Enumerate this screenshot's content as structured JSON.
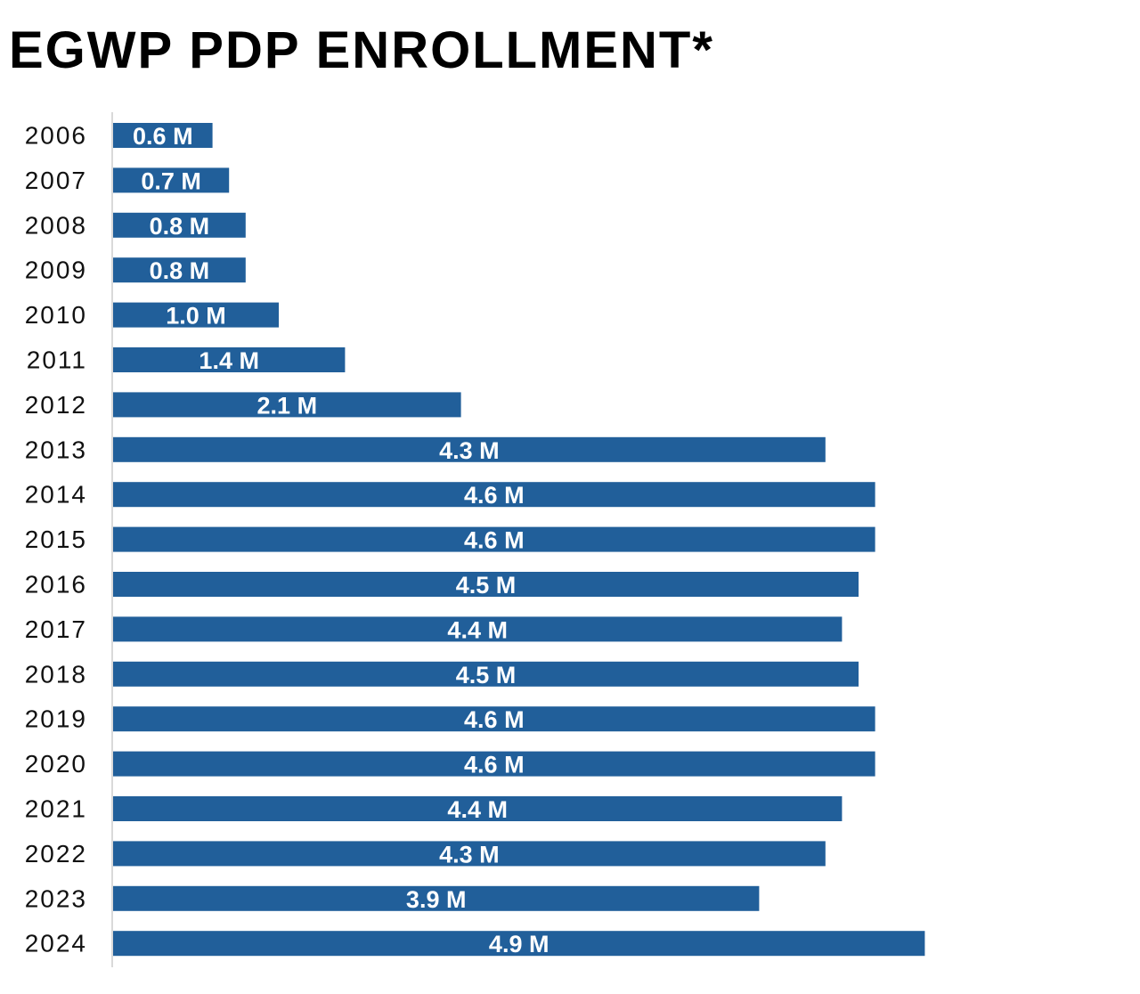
{
  "colors": {
    "bar": "#215F9A",
    "axis": "#D9D9D9",
    "title": "#000000",
    "label": "#111111",
    "value_text": "#FFFFFF"
  },
  "chart_data": {
    "type": "bar",
    "orientation": "horizontal",
    "title": "EGWP PDP ENROLLMENT*",
    "xlabel": "",
    "ylabel": "",
    "categories": [
      "2006",
      "2007",
      "2008",
      "2009",
      "2010",
      "2011",
      "2012",
      "2013",
      "2014",
      "2015",
      "2016",
      "2017",
      "2018",
      "2019",
      "2020",
      "2021",
      "2022",
      "2023",
      "2024"
    ],
    "values": [
      0.6,
      0.7,
      0.8,
      0.8,
      1.0,
      1.4,
      2.1,
      4.3,
      4.6,
      4.6,
      4.5,
      4.4,
      4.5,
      4.6,
      4.6,
      4.4,
      4.3,
      3.9,
      4.9
    ],
    "value_labels": [
      "0.6 M",
      "0.7 M",
      "0.8 M",
      "0.8 M",
      "1.0 M",
      "1.4 M",
      "2.1 M",
      "4.3 M",
      "4.6 M",
      "4.6 M",
      "4.5 M",
      "4.4 M",
      "4.5 M",
      "4.6 M",
      "4.6 M",
      "4.4 M",
      "4.3 M",
      "3.9 M",
      "4.9 M"
    ],
    "unit": "M",
    "xlim": [
      0,
      5.5
    ],
    "grid": false,
    "legend": "none"
  }
}
